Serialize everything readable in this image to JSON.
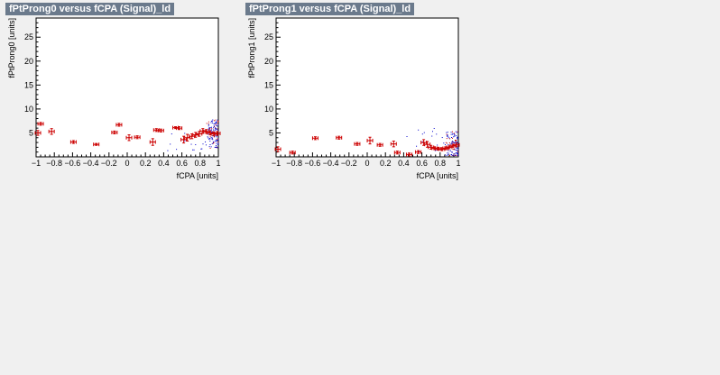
{
  "chart_data": [
    {
      "type": "scatter",
      "title": "fPtProng0 versus fCPA (Signal)_ld",
      "xlabel": "fCPA  [units]",
      "ylabel": "fPtProng0  [units]",
      "xlim": [
        -1,
        1
      ],
      "ylim": [
        0,
        29
      ],
      "xticks": [
        "−1",
        "−0.8",
        "−0.6",
        "−0.4",
        "−0.2",
        "0",
        "0.2",
        "0.4",
        "0.6",
        "0.8",
        "1"
      ],
      "yticks": [
        "5",
        "10",
        "15",
        "20",
        "25"
      ],
      "colors": {
        "profile": "#cc0000",
        "scatter": "#0000cc"
      },
      "profile": [
        {
          "x": -0.98,
          "y": 5.0,
          "ey": 0.5
        },
        {
          "x": -0.95,
          "y": 6.9,
          "ey": 0.3
        },
        {
          "x": -0.83,
          "y": 5.3,
          "ey": 0.6
        },
        {
          "x": -0.59,
          "y": 3.1,
          "ey": 0.3
        },
        {
          "x": -0.34,
          "y": 2.6,
          "ey": 0.2
        },
        {
          "x": -0.14,
          "y": 5.1,
          "ey": 0.3
        },
        {
          "x": -0.09,
          "y": 6.7,
          "ey": 0.3
        },
        {
          "x": 0.02,
          "y": 4.0,
          "ey": 0.6
        },
        {
          "x": 0.11,
          "y": 4.1,
          "ey": 0.3
        },
        {
          "x": 0.28,
          "y": 3.1,
          "ey": 0.7
        },
        {
          "x": 0.32,
          "y": 5.6,
          "ey": 0.3
        },
        {
          "x": 0.37,
          "y": 5.5,
          "ey": 0.3
        },
        {
          "x": 0.53,
          "y": 6.1,
          "ey": 0.2
        },
        {
          "x": 0.57,
          "y": 6.0,
          "ey": 0.3
        },
        {
          "x": 0.62,
          "y": 3.6,
          "ey": 0.7
        },
        {
          "x": 0.66,
          "y": 4.0,
          "ey": 0.7
        },
        {
          "x": 0.71,
          "y": 4.3,
          "ey": 0.5
        },
        {
          "x": 0.75,
          "y": 4.6,
          "ey": 0.5
        },
        {
          "x": 0.79,
          "y": 4.8,
          "ey": 0.5
        },
        {
          "x": 0.83,
          "y": 5.4,
          "ey": 0.5
        },
        {
          "x": 0.87,
          "y": 5.3,
          "ey": 0.4
        },
        {
          "x": 0.91,
          "y": 5.0,
          "ey": 0.4
        },
        {
          "x": 0.95,
          "y": 4.8,
          "ey": 0.4
        },
        {
          "x": 0.99,
          "y": 4.9,
          "ey": 0.4
        }
      ]
    },
    {
      "type": "scatter",
      "title": "fPtProng1 versus fCPA (Signal)_ld",
      "xlabel": "fCPA  [units]",
      "ylabel": "fPtProng1  [units]",
      "xlim": [
        -1,
        1
      ],
      "ylim": [
        0,
        29
      ],
      "xticks": [
        "−1",
        "−0.8",
        "−0.6",
        "−0.4",
        "−0.2",
        "0",
        "0.2",
        "0.4",
        "0.6",
        "0.8",
        "1"
      ],
      "yticks": [
        "5",
        "10",
        "15",
        "20",
        "25"
      ],
      "colors": {
        "profile": "#cc0000",
        "scatter": "#0000cc"
      },
      "profile": [
        {
          "x": -0.98,
          "y": 1.6,
          "ey": 0.5
        },
        {
          "x": -0.82,
          "y": 0.9,
          "ey": 0.3
        },
        {
          "x": -0.57,
          "y": 3.9,
          "ey": 0.3
        },
        {
          "x": -0.31,
          "y": 4.0,
          "ey": 0.3
        },
        {
          "x": -0.11,
          "y": 2.7,
          "ey": 0.3
        },
        {
          "x": 0.03,
          "y": 3.4,
          "ey": 0.7
        },
        {
          "x": 0.14,
          "y": 2.5,
          "ey": 0.3
        },
        {
          "x": 0.29,
          "y": 2.7,
          "ey": 0.6
        },
        {
          "x": 0.33,
          "y": 0.9,
          "ey": 0.3
        },
        {
          "x": 0.46,
          "y": 0.5,
          "ey": 0.3
        },
        {
          "x": 0.56,
          "y": 1.0,
          "ey": 0.3
        },
        {
          "x": 0.62,
          "y": 3.0,
          "ey": 0.6
        },
        {
          "x": 0.66,
          "y": 2.6,
          "ey": 0.6
        },
        {
          "x": 0.7,
          "y": 2.0,
          "ey": 0.4
        },
        {
          "x": 0.74,
          "y": 1.8,
          "ey": 0.3
        },
        {
          "x": 0.78,
          "y": 1.7,
          "ey": 0.3
        },
        {
          "x": 0.82,
          "y": 1.6,
          "ey": 0.3
        },
        {
          "x": 0.86,
          "y": 1.8,
          "ey": 0.3
        },
        {
          "x": 0.9,
          "y": 2.0,
          "ey": 0.3
        },
        {
          "x": 0.94,
          "y": 2.3,
          "ey": 0.3
        },
        {
          "x": 0.98,
          "y": 2.5,
          "ey": 0.4
        }
      ]
    }
  ]
}
